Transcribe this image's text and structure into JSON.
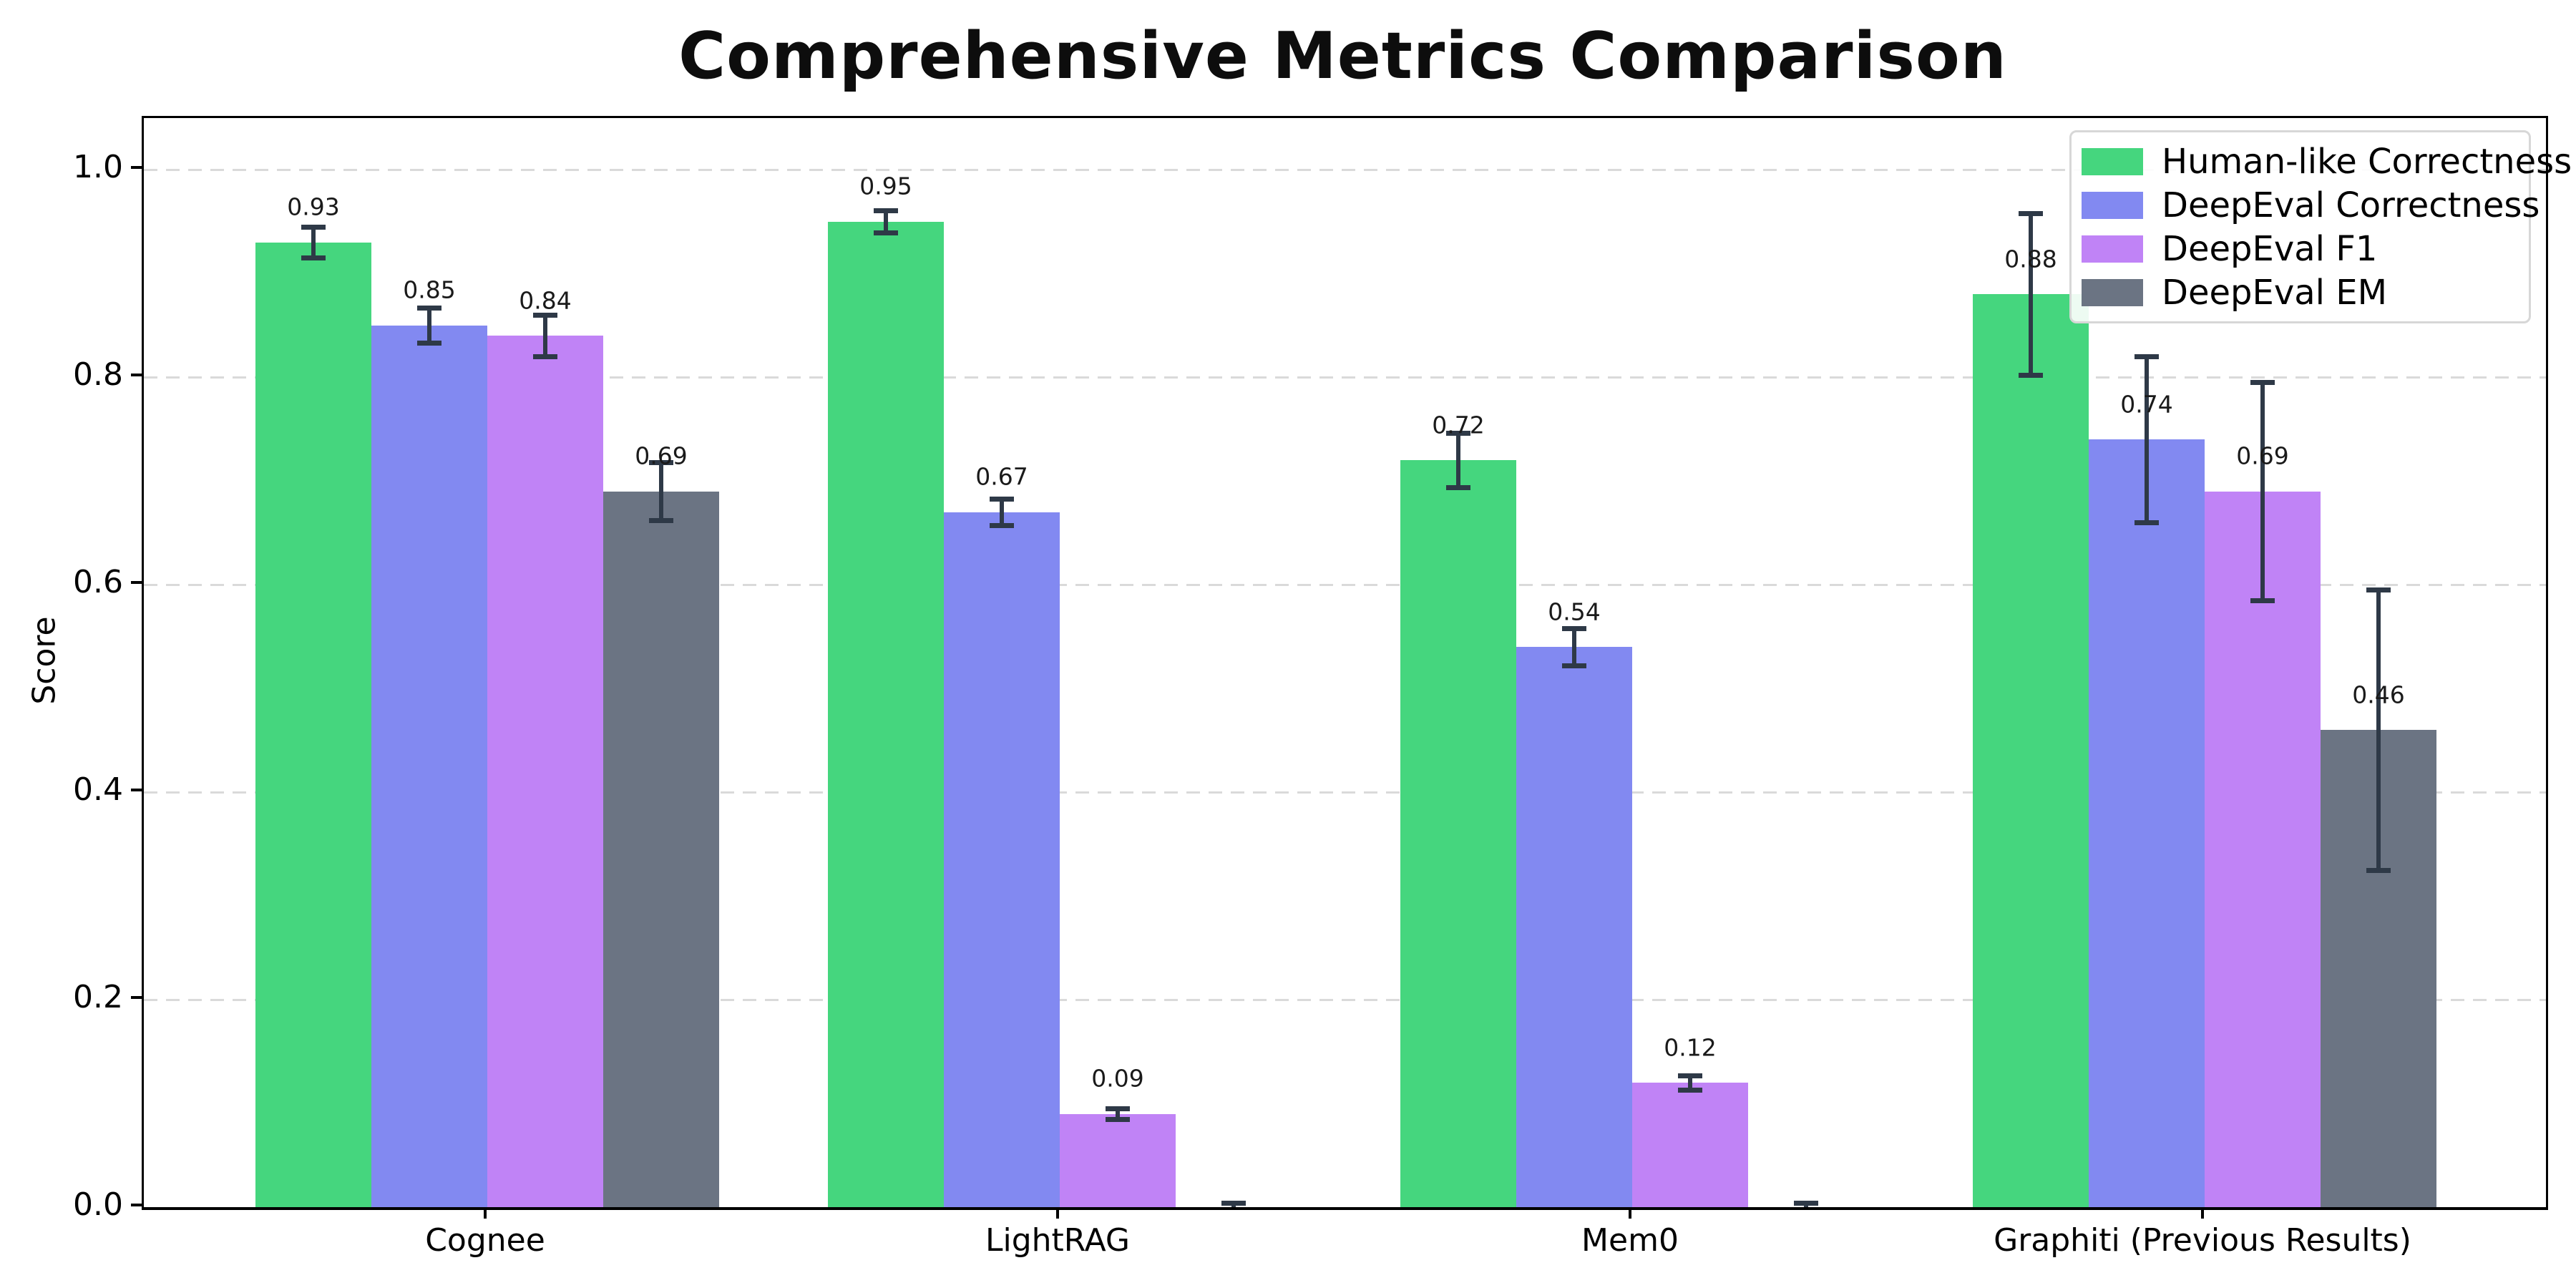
{
  "title": "Comprehensive Metrics Comparison",
  "chart_data": {
    "type": "bar",
    "title": "Comprehensive Metrics Comparison",
    "xlabel": "",
    "ylabel": "Score",
    "ylim": [
      0.0,
      1.05
    ],
    "yticks": [
      0.0,
      0.2,
      0.4,
      0.6,
      0.8,
      1.0
    ],
    "grid": "horizontal-dashed",
    "legend_position": "upper-right",
    "categories": [
      "Cognee",
      "LightRAG",
      "Mem0",
      "Graphiti (Previous Results)"
    ],
    "series": [
      {
        "name": "Human-like Correctness",
        "color": "#45d67e",
        "values": [
          0.93,
          0.95,
          0.72,
          0.88
        ],
        "errors": [
          0.015,
          0.011,
          0.026,
          0.078
        ],
        "bar_labels": [
          "0.93",
          "0.95",
          "0.72",
          "0.88"
        ]
      },
      {
        "name": "DeepEval Correctness",
        "color": "#8289f1",
        "values": [
          0.85,
          0.67,
          0.54,
          0.74
        ],
        "errors": [
          0.017,
          0.013,
          0.018,
          0.08
        ],
        "bar_labels": [
          "0.85",
          "0.67",
          "0.54",
          "0.74"
        ]
      },
      {
        "name": "DeepEval F1",
        "color": "#c083f6",
        "values": [
          0.84,
          0.09,
          0.12,
          0.69
        ],
        "errors": [
          0.02,
          0.005,
          0.007,
          0.105
        ],
        "bar_labels": [
          "0.84",
          "0.09",
          "0.12",
          "0.69"
        ]
      },
      {
        "name": "DeepEval EM",
        "color": "#6b7483",
        "values": [
          0.69,
          0.0,
          0.0,
          0.46
        ],
        "errors": [
          0.028,
          0.004,
          0.004,
          0.135
        ],
        "bar_labels": [
          "0.69",
          "",
          "",
          "0.46"
        ]
      }
    ],
    "colors": {
      "error_bar": "#2e3947",
      "grid": "#dadada",
      "axis": "#000000",
      "background": "#ffffff"
    }
  }
}
